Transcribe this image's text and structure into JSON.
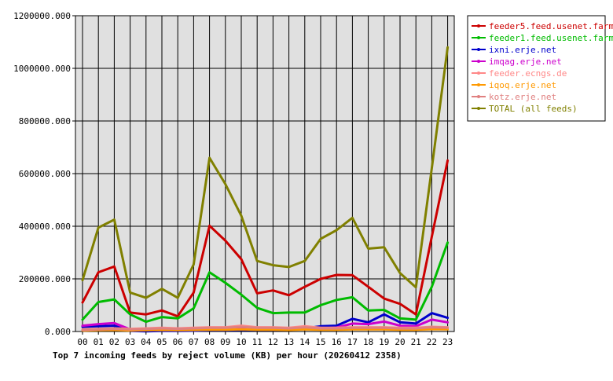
{
  "chart_data": {
    "type": "line",
    "title": "Top 7 incoming feeds by reject volume (KB) per hour (20260412 2358)",
    "xlabel": "",
    "ylabel": "",
    "ylim": [
      0,
      1200000
    ],
    "yticks": [
      "0.000",
      "200000.000",
      "400000.000",
      "600000.000",
      "800000.000",
      "1000000.000",
      "1200000.000"
    ],
    "x": [
      "00",
      "01",
      "02",
      "03",
      "04",
      "05",
      "06",
      "07",
      "08",
      "09",
      "10",
      "11",
      "12",
      "13",
      "14",
      "15",
      "16",
      "17",
      "18",
      "19",
      "20",
      "21",
      "22",
      "23"
    ],
    "grid": true,
    "legend_position": "right",
    "series": [
      {
        "name": "feeder5.feed.usenet.farm",
        "color": "#cc0000",
        "values": [
          110000,
          225000,
          247000,
          72000,
          65000,
          80000,
          58000,
          148000,
          402000,
          345000,
          275000,
          145000,
          156000,
          138000,
          170000,
          200000,
          215000,
          214000,
          170000,
          125000,
          105000,
          65000,
          360000,
          650000
        ]
      },
      {
        "name": "feeder1.feed.usenet.farm",
        "color": "#00bb00",
        "values": [
          45000,
          112000,
          122000,
          65000,
          37000,
          55000,
          50000,
          88000,
          225000,
          185000,
          140000,
          90000,
          70000,
          72000,
          72000,
          100000,
          120000,
          130000,
          80000,
          82000,
          50000,
          45000,
          170000,
          338000
        ]
      },
      {
        "name": "ixni.erje.net",
        "color": "#0000cc",
        "values": [
          18000,
          20000,
          22000,
          2000,
          1000,
          2000,
          2000,
          3000,
          5000,
          5000,
          6000,
          6000,
          6000,
          6000,
          12000,
          20000,
          22000,
          48000,
          35000,
          65000,
          35000,
          30000,
          70000,
          52000
        ]
      },
      {
        "name": "imqag.erje.net",
        "color": "#cc00cc",
        "values": [
          22000,
          28000,
          32000,
          8000,
          10000,
          12000,
          10000,
          10000,
          12000,
          12000,
          14000,
          12000,
          12000,
          10000,
          12000,
          12000,
          15000,
          30000,
          28000,
          38000,
          22000,
          20000,
          45000,
          35000
        ]
      },
      {
        "name": "feeder.ecngs.de",
        "color": "#ff8888",
        "values": [
          8000,
          10000,
          12000,
          10000,
          12000,
          14000,
          12000,
          14000,
          16000,
          16000,
          22000,
          16000,
          16000,
          14000,
          20000,
          14000,
          14000,
          16000,
          16000,
          16000,
          14000,
          14000,
          18000,
          16000
        ]
      },
      {
        "name": "iqoq.erje.net",
        "color": "#ff9900",
        "values": [
          4000,
          5000,
          6000,
          4000,
          5000,
          6000,
          5000,
          6000,
          7000,
          7000,
          8000,
          7000,
          7000,
          6000,
          8000,
          7000,
          7000,
          8000,
          8000,
          8000,
          7000,
          7000,
          9000,
          8000
        ]
      },
      {
        "name": "kotz.erje.net",
        "color": "#e08080",
        "values": [
          6000,
          8000,
          10000,
          8000,
          10000,
          12000,
          10000,
          12000,
          14000,
          14000,
          18000,
          14000,
          14000,
          12000,
          16000,
          12000,
          12000,
          14000,
          14000,
          14000,
          12000,
          12000,
          16000,
          14000
        ]
      },
      {
        "name": "TOTAL (all feeds)",
        "color": "#808000",
        "values": [
          195000,
          395000,
          425000,
          148000,
          128000,
          162000,
          128000,
          255000,
          660000,
          560000,
          440000,
          268000,
          252000,
          245000,
          268000,
          352000,
          385000,
          432000,
          315000,
          320000,
          222000,
          168000,
          620000,
          1080000
        ]
      }
    ]
  }
}
